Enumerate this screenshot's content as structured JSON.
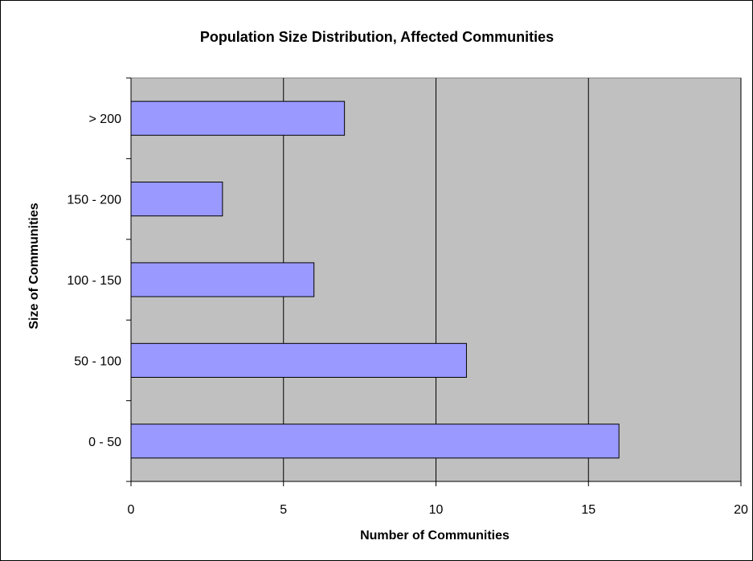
{
  "colors": {
    "plot_background": "#c0c0c0",
    "bar_fill": "#9999ff",
    "bar_stroke": "#000000",
    "gridline": "#000000",
    "page_background": "#ffffff"
  },
  "chart_data": {
    "type": "bar",
    "orientation": "horizontal",
    "title": "Population Size Distribution, Affected Communities",
    "xlabel": "Number of Communities",
    "ylabel": "Size of Communities",
    "categories": [
      "0 - 50",
      "50 - 100",
      "100 - 150",
      "150 - 200",
      "> 200"
    ],
    "values": [
      16,
      11,
      6,
      3,
      7
    ],
    "xlim": [
      0,
      20
    ],
    "x_ticks": [
      "0",
      "5",
      "10",
      "15",
      "20"
    ],
    "grid": true,
    "legend": "none"
  }
}
